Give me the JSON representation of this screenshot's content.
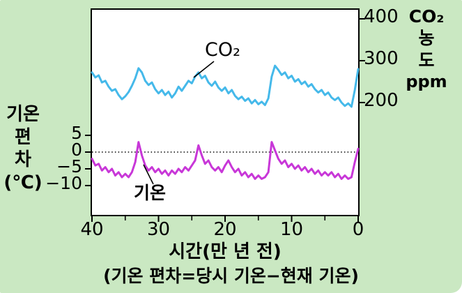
{
  "figure": {
    "bg_color": "#cae8c2",
    "plot_bg": "#ffffff",
    "co2_color": "#45b9ea",
    "temp_color": "#c837d8"
  },
  "caption": "(기온 편차=당시 기온−현재 기온)",
  "annotations": {
    "co2": "CO₂",
    "temp": "기온"
  },
  "axes": {
    "left": {
      "title_lines": [
        "기온",
        "편",
        "차",
        "(℃)"
      ],
      "ticks": [
        5,
        0,
        -5,
        -10
      ],
      "tick_labels": [
        "5",
        "0",
        "−5",
        "−10"
      ]
    },
    "right": {
      "title_lines": [
        "CO₂",
        "농",
        "도",
        "ppm"
      ],
      "ticks": [
        400,
        300,
        200
      ],
      "tick_labels": [
        "400",
        "300",
        "200"
      ]
    },
    "bottom": {
      "title": "시간(만 년 전)",
      "ticks": [
        40,
        30,
        20,
        10,
        0
      ],
      "tick_labels": [
        "40",
        "30",
        "20",
        "10",
        "0"
      ],
      "minor_ticks": [
        35,
        25,
        15,
        5
      ]
    }
  },
  "chart_data": {
    "type": "line",
    "title": "",
    "xlabel": "시간(만 년 전)",
    "x_range": [
      40,
      0
    ],
    "x_axis_reversed": true,
    "grid": false,
    "legend": "none",
    "left_axis": {
      "label": "기온 편차(℃)",
      "ticks": [
        5,
        0,
        -5,
        -10
      ],
      "zero_line": "dotted"
    },
    "right_axis": {
      "label": "CO₂ 농도(ppm)",
      "ticks": [
        400,
        300,
        200
      ]
    },
    "x": [
      40,
      39.5,
      39,
      38.5,
      38,
      37.5,
      37,
      36.5,
      36,
      35.5,
      35,
      34.5,
      34,
      33.5,
      33,
      32.5,
      32,
      31.5,
      31,
      30.5,
      30,
      29.5,
      29,
      28.5,
      28,
      27.5,
      27,
      26.5,
      26,
      25.5,
      25,
      24.5,
      24,
      23.5,
      23,
      22.5,
      22,
      21.5,
      21,
      20.5,
      20,
      19.5,
      19,
      18.5,
      18,
      17.5,
      17,
      16.5,
      16,
      15.5,
      15,
      14.5,
      14,
      13.5,
      13,
      12.5,
      12,
      11.5,
      11,
      10.5,
      10,
      9.5,
      9,
      8.5,
      8,
      7.5,
      7,
      6.5,
      6,
      5.5,
      5,
      4.5,
      4,
      3.5,
      3,
      2.5,
      2,
      1.5,
      1,
      0.5,
      0
    ],
    "series": [
      {
        "name": "CO₂ 농도",
        "unit": "ppm",
        "axis": "right",
        "color": "#45b9ea",
        "values": [
          272,
          260,
          265,
          248,
          252,
          238,
          228,
          232,
          218,
          208,
          215,
          225,
          240,
          258,
          282,
          272,
          252,
          242,
          248,
          232,
          222,
          230,
          218,
          226,
          212,
          222,
          238,
          228,
          240,
          252,
          246,
          262,
          272,
          258,
          264,
          248,
          240,
          250,
          236,
          228,
          236,
          222,
          230,
          216,
          208,
          214,
          204,
          210,
          198,
          206,
          196,
          202,
          194,
          210,
          262,
          288,
          278,
          266,
          272,
          258,
          264,
          250,
          256,
          244,
          250,
          238,
          244,
          232,
          224,
          230,
          218,
          224,
          212,
          206,
          212,
          200,
          192,
          198,
          190,
          230,
          280
        ]
      },
      {
        "name": "기온 편차",
        "unit": "℃",
        "axis": "left",
        "color": "#c837d8",
        "values": [
          -2,
          -4,
          -3.5,
          -5.5,
          -4.5,
          -6,
          -5,
          -7,
          -6,
          -7.5,
          -6.5,
          -7.5,
          -6,
          -3,
          3,
          -1,
          -4,
          -5.5,
          -4.5,
          -6,
          -5,
          -6.5,
          -5.5,
          -7,
          -5.5,
          -6.5,
          -5,
          -6,
          -4.5,
          -5.5,
          -4,
          -2.5,
          2,
          -1,
          -3.5,
          -2.5,
          -4.5,
          -5.5,
          -4.5,
          -6,
          -4,
          -2.5,
          -4.5,
          -6,
          -5,
          -7,
          -6,
          -7.5,
          -6.5,
          -8,
          -7,
          -8,
          -7.5,
          -6,
          3,
          0.5,
          -2,
          -3.5,
          -2.5,
          -4.5,
          -3.5,
          -5,
          -4,
          -5.5,
          -4.5,
          -6,
          -5,
          -6.5,
          -5.5,
          -7,
          -6,
          -7,
          -6,
          -7.5,
          -6.5,
          -8,
          -7,
          -8,
          -7.5,
          -3,
          1
        ]
      }
    ]
  }
}
